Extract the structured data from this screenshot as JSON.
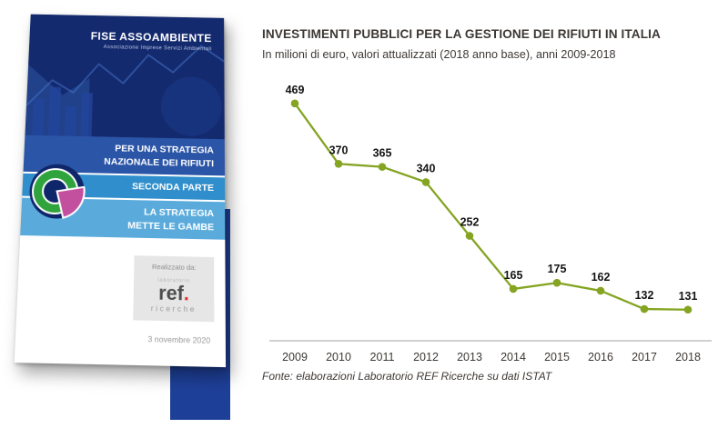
{
  "cover": {
    "org_name": "FISE ASSOAMBIENTE",
    "org_subtitle": "Associazione Imprese Servizi Ambientali",
    "title_line1": "PER UNA STRATEGIA",
    "title_line2": "NAZIONALE DEI RIFIUTI",
    "part_label": "SECONDA PARTE",
    "part_title_line1": "LA STRATEGIA",
    "part_title_line2": "METTE LE GAMBE",
    "credit_label": "Realizzato da:",
    "credit_logo_top": "laboratorio",
    "credit_logo": "ref",
    "credit_logo_dot": ".",
    "credit_logo_sub": "ricerche",
    "date": "3 novembre 2020"
  },
  "chart": {
    "title": "INVESTIMENTI PUBBLICI PER LA GESTIONE DEI RIFIUTI IN ITALIA",
    "subtitle": "In milioni di euro, valori attualizzati (2018 anno base), anni 2009-2018",
    "source": "Fonte: elaborazioni Laboratorio REF Ricerche su dati ISTAT"
  },
  "chart_data": {
    "type": "line",
    "title": "INVESTIMENTI PUBBLICI PER LA GESTIONE DEI RIFIUTI IN ITALIA",
    "subtitle": "In milioni di euro, valori attualizzati (2018 anno base), anni 2009-2018",
    "categories": [
      "2009",
      "2010",
      "2011",
      "2012",
      "2013",
      "2014",
      "2015",
      "2016",
      "2017",
      "2018"
    ],
    "values": [
      469,
      370,
      365,
      340,
      252,
      165,
      175,
      162,
      132,
      131
    ],
    "xlabel": "",
    "ylabel": "",
    "ylim": [
      80,
      500
    ],
    "grid": false,
    "legend": false,
    "marker": "circle",
    "line_color": "#84a422",
    "label_color": "#141414",
    "axis_color": "#a0a0a0",
    "source": "Fonte: elaborazioni Laboratorio REF Ricerche su dati ISTAT"
  },
  "colors": {
    "cover_navy": "#142a6e",
    "band_blue": "#2b55a7",
    "band_mid_blue": "#2f8ecb",
    "band_light_blue": "#5aabdc",
    "accent_bar_blue": "#1d3f98",
    "logo_green": "#2fa43d",
    "logo_pink": "#c2509e",
    "ref_dot_red": "#e03127",
    "chart_line_green": "#84a422"
  }
}
